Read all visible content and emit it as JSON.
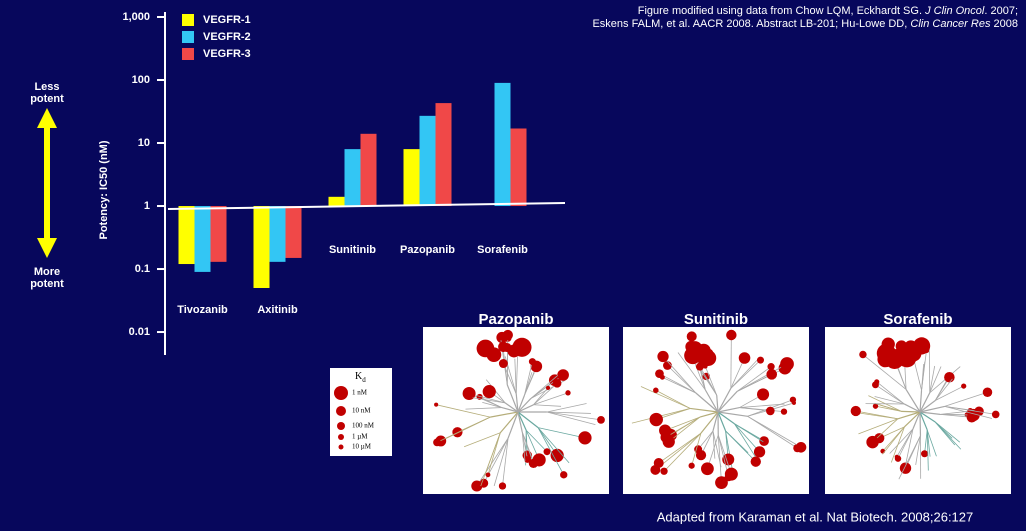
{
  "chart_data": {
    "type": "bar",
    "title_note": [
      [
        {
          "text": "Figure modified using data from Chow LQM, Eckhardt SG. "
        },
        {
          "text": "J Clin Oncol",
          "italic": true
        },
        {
          "text": ". 2007;"
        }
      ],
      [
        {
          "text": "Eskens FALM, et al. AACR 2008. Abstract LB-201; Hu-Lowe DD, "
        },
        {
          "text": "Clin Cancer Res",
          "italic": true
        },
        {
          "text": " 2008"
        }
      ]
    ],
    "y_label": "Potency: IC50 (nM)",
    "less_potent": [
      "Less",
      "potent"
    ],
    "more_potent": [
      "More",
      "potent"
    ],
    "log_y": true,
    "ylim": [
      0.005,
      1000
    ],
    "yticks": [
      {
        "value": 1000,
        "label": "1,000"
      },
      100,
      10,
      1,
      0.1,
      0.01
    ],
    "categories": [
      "Tivozanib",
      "Axitinib",
      "Sunitinib",
      "Pazopanib",
      "Sorafenib"
    ],
    "series": [
      {
        "name": "VEGFR-1",
        "color": "#ffff00",
        "values": [
          0.12,
          0.05,
          1.4,
          8,
          null
        ]
      },
      {
        "name": "VEGFR-2",
        "color": "#33c6f4",
        "values": [
          0.09,
          0.13,
          8,
          27,
          90
        ]
      },
      {
        "name": "VEGFR-3",
        "color": "#f04848",
        "values": [
          0.13,
          0.15,
          14,
          43,
          17
        ]
      }
    ],
    "kinome": {
      "panels": [
        "Pazopanib",
        "Sunitinib",
        "Sorafenib"
      ],
      "kd_legend": {
        "symbol": "K",
        "subscript": "d",
        "entries": [
          "1 nM",
          "10 nM",
          "100 nM",
          "1 µM",
          "10 µM"
        ]
      },
      "source": "Adapted from Karaman et al. Nat Biotech. 2008;26:127"
    }
  }
}
